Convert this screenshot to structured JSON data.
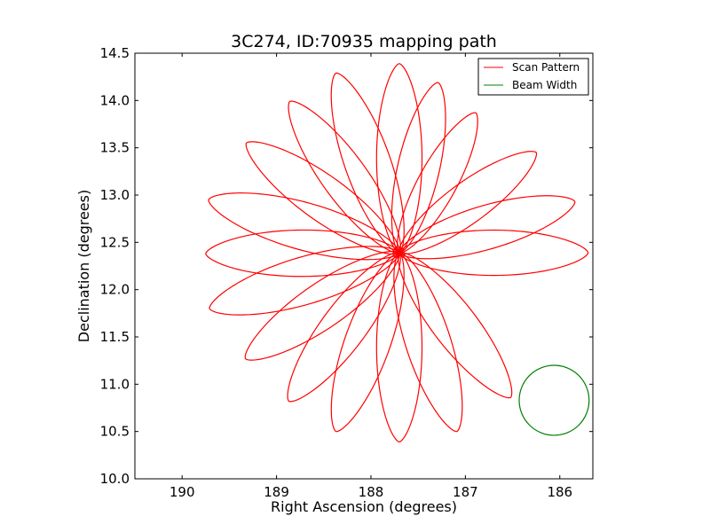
{
  "chart_data": {
    "type": "line",
    "title": "3C274, ID:70935 mapping path",
    "xlabel": "Right Ascension (degrees)",
    "ylabel": "Declination (degrees)",
    "xlim": [
      190.5,
      185.65
    ],
    "ylim": [
      10.0,
      14.5
    ],
    "x_inverted": true,
    "x_ticks": [
      190,
      189,
      188,
      187,
      186
    ],
    "x_tick_labels": [
      "190",
      "189",
      "188",
      "187",
      "186"
    ],
    "y_ticks": [
      10.0,
      10.5,
      11.0,
      11.5,
      12.0,
      12.5,
      13.0,
      13.5,
      14.0,
      14.5
    ],
    "y_tick_labels": [
      "10.0",
      "10.5",
      "11.0",
      "11.5",
      "12.0",
      "12.5",
      "13.0",
      "13.5",
      "14.0",
      "14.5"
    ],
    "grid": false,
    "legend_position": "top-right",
    "series": [
      {
        "name": "Scan Pattern",
        "color": "#ff0000",
        "kind": "rosette",
        "center": [
          187.7,
          12.39
        ],
        "petals": 18,
        "petal_tips": [
          [
            185.7,
            12.39
          ],
          [
            185.84,
            12.93
          ],
          [
            186.25,
            13.45
          ],
          [
            186.89,
            13.87
          ],
          [
            187.29,
            14.19
          ],
          [
            187.7,
            14.39
          ],
          [
            188.37,
            14.29
          ],
          [
            188.86,
            13.99
          ],
          [
            189.32,
            13.55
          ],
          [
            189.72,
            12.95
          ],
          [
            189.75,
            12.38
          ],
          [
            189.71,
            11.8
          ],
          [
            189.33,
            11.27
          ],
          [
            188.87,
            10.82
          ],
          [
            188.37,
            10.5
          ],
          [
            187.7,
            10.39
          ],
          [
            187.09,
            10.5
          ],
          [
            186.52,
            10.86
          ]
        ]
      },
      {
        "name": "Beam Width",
        "color": "#008000",
        "kind": "circle",
        "center": [
          186.06,
          10.83
        ],
        "radius_deg": 0.37
      }
    ]
  }
}
